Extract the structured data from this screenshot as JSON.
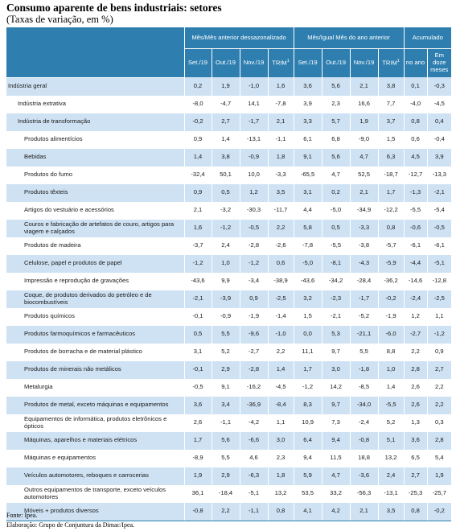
{
  "title": "Consumo aparente de bens industriais: setores",
  "subtitle": "(Taxas de variação, em %)",
  "groups": [
    "Mês/Mês anterior dessazonalizado",
    "Mês/Igual Mês do ano anterior",
    "Acumulado"
  ],
  "columns": [
    "Set./19",
    "Out./19",
    "Nov./19",
    "TRIM",
    "Set./19",
    "Out./19",
    "Nov./19",
    "TRIM",
    "no ano",
    "Em doze meses"
  ],
  "trim_sup": "1",
  "rows": [
    {
      "label": "Indústria geral",
      "level": 0,
      "values": [
        "0,2",
        "1,9",
        "-1,0",
        "1,6",
        "3,6",
        "5,6",
        "2,1",
        "3,8",
        "0,1",
        "-0,3"
      ]
    },
    {
      "label": "Indústria extrativa",
      "level": 1,
      "values": [
        "-8,0",
        "-4,7",
        "14,1",
        "-7,8",
        "3,9",
        "2,3",
        "16,6",
        "7,7",
        "-4,0",
        "-4,5"
      ]
    },
    {
      "label": "Indústria de transformação",
      "level": 1,
      "values": [
        "-0,2",
        "2,7",
        "-1,7",
        "2,1",
        "3,3",
        "5,7",
        "1,9",
        "3,7",
        "0,8",
        "0,4"
      ]
    },
    {
      "label": "Produtos alimentícios",
      "level": 2,
      "values": [
        "0,9",
        "1,4",
        "-13,1",
        "-1,1",
        "6,1",
        "6,8",
        "-9,0",
        "1,5",
        "0,6",
        "-0,4"
      ]
    },
    {
      "label": "Bebidas",
      "level": 2,
      "values": [
        "1,4",
        "3,8",
        "-0,9",
        "1,8",
        "9,1",
        "5,6",
        "4,7",
        "6,3",
        "4,5",
        "3,9"
      ]
    },
    {
      "label": "Produtos do fumo",
      "level": 2,
      "values": [
        "-32,4",
        "50,1",
        "10,0",
        "-3,3",
        "-65,5",
        "4,7",
        "52,5",
        "-18,7",
        "-12,7",
        "-13,3"
      ]
    },
    {
      "label": "Produtos têxteis",
      "level": 2,
      "values": [
        "0,9",
        "0,5",
        "1,2",
        "3,5",
        "3,1",
        "0,2",
        "2,1",
        "1,7",
        "-1,3",
        "-2,1"
      ]
    },
    {
      "label": "Artigos do vestuário e acessórios",
      "level": 2,
      "values": [
        "2,1",
        "-3,2",
        "-30,3",
        "-11,7",
        "4,4",
        "-5,0",
        "-34,9",
        "-12,2",
        "-5,5",
        "-5,4"
      ]
    },
    {
      "label": "Couros e fabricação de artefatos de couro, artigos para viagem e calçados",
      "level": 2,
      "values": [
        "1,6",
        "-1,2",
        "-0,5",
        "2,2",
        "5,8",
        "0,5",
        "-3,3",
        "0,8",
        "-0,6",
        "-0,5"
      ]
    },
    {
      "label": "Produtos de madeira",
      "level": 2,
      "values": [
        "-3,7",
        "2,4",
        "-2,8",
        "-2,6",
        "-7,8",
        "-5,5",
        "-3,8",
        "-5,7",
        "-6,1",
        "-6,1"
      ]
    },
    {
      "label": "Celulose, papel e produtos de papel",
      "level": 2,
      "values": [
        "-1,2",
        "1,0",
        "-1,2",
        "0,6",
        "-5,0",
        "-8,1",
        "-4,3",
        "-5,9",
        "-4,4",
        "-5,1"
      ]
    },
    {
      "label": "Impressão e reprodução de gravações",
      "level": 2,
      "values": [
        "-43,6",
        "9,9",
        "-3,4",
        "-38,9",
        "-43,6",
        "-34,2",
        "-28,4",
        "-36,2",
        "-14,6",
        "-12,8"
      ]
    },
    {
      "label": "Coque, de produtos derivados do petróleo e de biocombustíveis",
      "level": 2,
      "values": [
        "-2,1",
        "-3,9",
        "0,9",
        "-2,5",
        "3,2",
        "-2,3",
        "-1,7",
        "-0,2",
        "-2,4",
        "-2,5"
      ]
    },
    {
      "label": "Produtos químicos",
      "level": 2,
      "values": [
        "-0,1",
        "-0,9",
        "-1,9",
        "-1,4",
        "1,5",
        "-2,1",
        "-5,2",
        "-1,9",
        "1,2",
        "1,1"
      ]
    },
    {
      "label": "Produtos farmoquímicos e farmacêuticos",
      "level": 2,
      "values": [
        "0,5",
        "5,5",
        "-9,6",
        "-1,0",
        "0,0",
        "5,3",
        "-21,1",
        "-6,0",
        "-2,7",
        "-1,2"
      ]
    },
    {
      "label": "Produtos de borracha e de material plástico",
      "level": 2,
      "values": [
        "3,1",
        "5,2",
        "-2,7",
        "2,2",
        "11,1",
        "9,7",
        "5,5",
        "8,8",
        "2,2",
        "0,9"
      ]
    },
    {
      "label": "Produtos de minerais não metálicos",
      "level": 2,
      "values": [
        "-0,1",
        "2,9",
        "-2,8",
        "1,4",
        "1,7",
        "3,0",
        "-1,8",
        "1,0",
        "2,8",
        "2,7"
      ]
    },
    {
      "label": "Metalurgia",
      "level": 2,
      "values": [
        "-0,5",
        "9,1",
        "-16,2",
        "-4,5",
        "-1,2",
        "14,2",
        "-8,5",
        "1,4",
        "2,6",
        "2,2"
      ]
    },
    {
      "label": "Produtos de metal, exceto máquinas e equipamentos",
      "level": 2,
      "values": [
        "3,6",
        "3,4",
        "-36,9",
        "-8,4",
        "8,3",
        "9,7",
        "-34,0",
        "-5,5",
        "2,6",
        "2,2"
      ]
    },
    {
      "label": "Equipamentos de informática, produtos eletrônicos e ópticos",
      "level": 2,
      "values": [
        "2,6",
        "-1,1",
        "-4,2",
        "1,1",
        "10,9",
        "7,3",
        "-2,4",
        "5,2",
        "1,3",
        "0,3"
      ]
    },
    {
      "label": "Máquinas, aparelhos e materiais elétricos",
      "level": 2,
      "values": [
        "1,7",
        "5,6",
        "-6,6",
        "3,0",
        "6,4",
        "9,4",
        "-0,8",
        "5,1",
        "3,6",
        "2,8"
      ]
    },
    {
      "label": "Máquinas e equipamentos",
      "level": 2,
      "values": [
        "-8,9",
        "5,5",
        "4,6",
        "2,3",
        "9,4",
        "11,5",
        "18,8",
        "13,2",
        "6,5",
        "5,4"
      ]
    },
    {
      "label": "Veículos automotores, reboques e carrocerias",
      "level": 2,
      "values": [
        "1,9",
        "2,9",
        "-6,3",
        "1,8",
        "5,9",
        "4,7",
        "-3,6",
        "2,4",
        "2,7",
        "1,9"
      ]
    },
    {
      "label": "Outros equipamentos de transporte, exceto veículos automotores",
      "level": 2,
      "values": [
        "36,1",
        "-18,4",
        "-5,1",
        "13,2",
        "53,5",
        "33,2",
        "-56,3",
        "-13,1",
        "-25,3",
        "-25,7"
      ]
    },
    {
      "label": "Móveis + produtos diversos",
      "level": 2,
      "values": [
        "-0,8",
        "2,2",
        "-1,1",
        "0,8",
        "4,1",
        "4,2",
        "2,1",
        "3,5",
        "0,8",
        "-0,2"
      ]
    }
  ],
  "footer": {
    "fonte": "Fonte: Ipea.",
    "elaboracao": "Elaboração: Grupo de Conjuntura da Dimac/Ipea."
  },
  "colors": {
    "header": "#2e7fb0",
    "band": "#cfe2f3"
  }
}
